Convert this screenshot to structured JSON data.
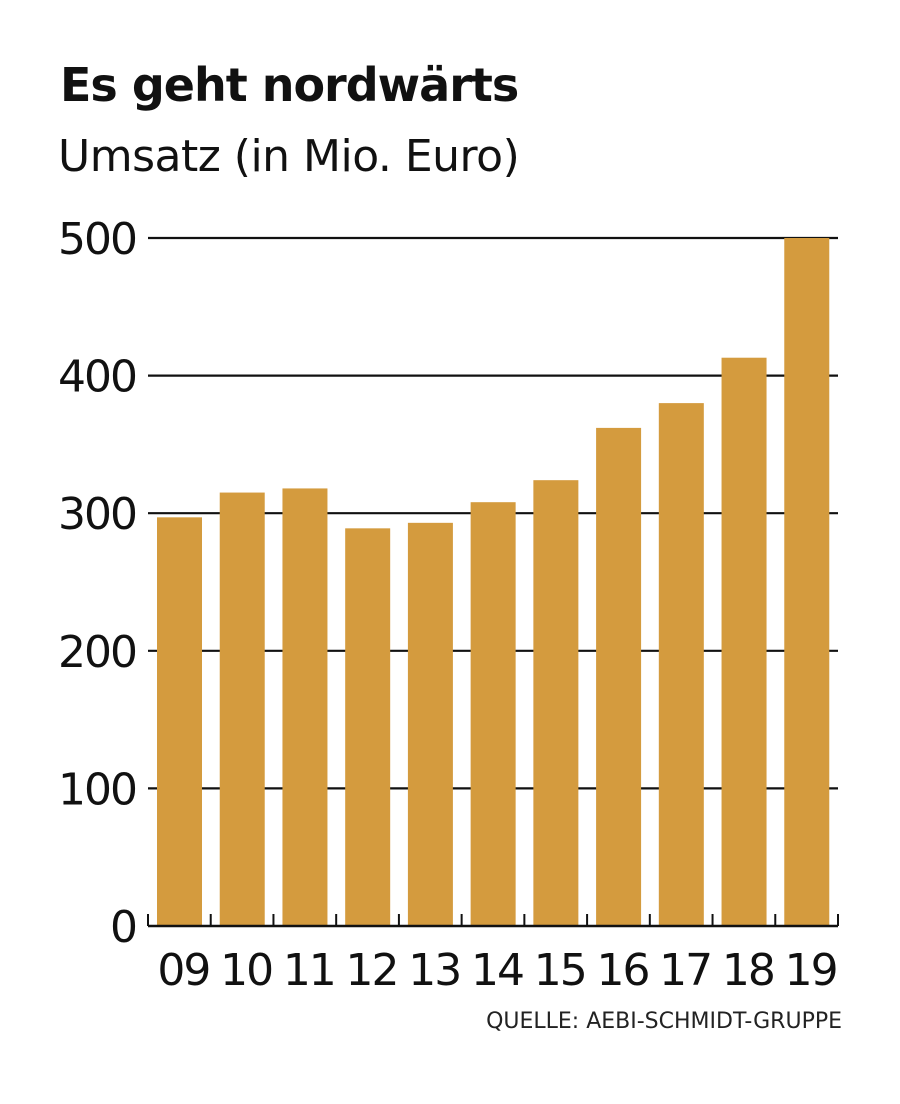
{
  "header": {
    "title": "Es geht nordwärts",
    "subtitle": "Umsatz (in Mio. Euro)"
  },
  "footer": {
    "source": "QUELLE: AEBI-SCHMIDT-GRUPPE"
  },
  "colors": {
    "bar": "#D49B3E",
    "grid": "#111111",
    "text": "#111111"
  },
  "chart_data": {
    "type": "bar",
    "title": "Es geht nordwärts",
    "subtitle": "Umsatz (in Mio. Euro)",
    "xlabel": "",
    "ylabel": "Umsatz (in Mio. Euro)",
    "categories": [
      "09",
      "10",
      "11",
      "12",
      "13",
      "14",
      "15",
      "16",
      "17",
      "18",
      "19"
    ],
    "values": [
      297,
      315,
      318,
      289,
      293,
      308,
      324,
      362,
      380,
      413,
      500
    ],
    "ylim": [
      0,
      500
    ],
    "yticks": [
      0,
      100,
      200,
      300,
      400,
      500
    ],
    "ytick_labels": [
      "0",
      "100",
      "200",
      "300",
      "400",
      "500"
    ],
    "grid": true,
    "legend": null,
    "source": "QUELLE: AEBI-SCHMIDT-GRUPPE"
  }
}
